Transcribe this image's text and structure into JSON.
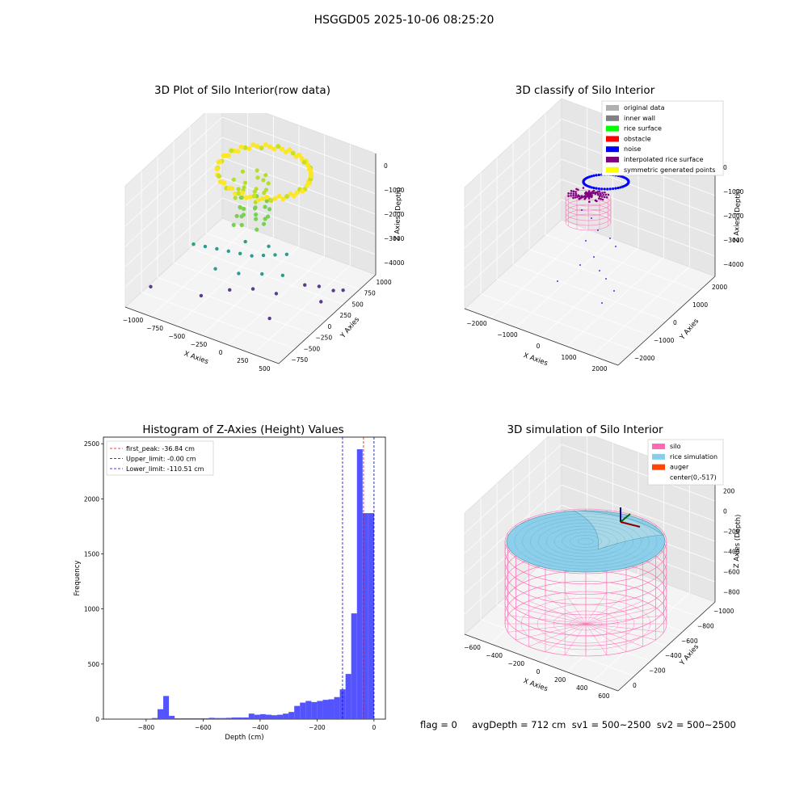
{
  "figure": {
    "suptitle": "HSGGD05 2025-10-06 08:25:20",
    "status_text": "flag = 0     avgDepth = 712 cm  sv1 = 500~2500  sv2 = 500~2500"
  },
  "colors": {
    "noise": "#0000ff",
    "rice_surface": "#00ff00",
    "obstacle": "#ff0000",
    "interpolated": "#800080",
    "symmetric": "#ffff00",
    "original": "#b0b0b0",
    "inner_wall": "#808080",
    "silo": "#ff69b4",
    "rice_sim": "#87ceeb",
    "auger": "#ff4500",
    "hist_bar": "#4b4bff"
  },
  "chart_data": [
    {
      "type": "scatter",
      "title": "3D Plot of Silo Interior(row data)",
      "xlabel": "X Axies",
      "ylabel": "Y Axies",
      "zlabel": "Z Axies (Depth)",
      "x_ticks": [
        "−1000",
        "−750",
        "−500",
        "−250",
        "0",
        "250",
        "500"
      ],
      "y_ticks": [
        "−750",
        "−500",
        "−250",
        "0",
        "250",
        "500",
        "750",
        "1000"
      ],
      "z_ticks": [
        "0",
        "−1000",
        "−2000",
        "−3000",
        "−4000"
      ],
      "xlim": [
        -1150,
        550
      ],
      "ylim": [
        -800,
        1050
      ],
      "zlim": [
        -4300,
        0
      ],
      "ring": {
        "center": [
          -250,
          300
        ],
        "radius": 450,
        "z": -400
      },
      "mid_points": [
        [
          -800,
          -100,
          -2850
        ],
        [
          -700,
          -50,
          -2900
        ],
        [
          -600,
          0,
          -2950
        ],
        [
          -500,
          50,
          -3000
        ],
        [
          -400,
          100,
          -3050
        ],
        [
          -300,
          150,
          -3100
        ],
        [
          -200,
          200,
          -3050
        ],
        [
          -100,
          250,
          -3000
        ],
        [
          0,
          300,
          -2950
        ],
        [
          -500,
          -200,
          -3200
        ],
        [
          -300,
          -100,
          -3300
        ],
        [
          -100,
          0,
          -3250
        ],
        [
          100,
          50,
          -3150
        ],
        [
          -400,
          200,
          -2800
        ],
        [
          -200,
          300,
          -2900
        ]
      ],
      "deep_points": [
        [
          -1100,
          -400,
          -4200
        ],
        [
          -600,
          -300,
          -4100
        ],
        [
          -400,
          -100,
          -4000
        ],
        [
          -200,
          0,
          -3900
        ],
        [
          0,
          100,
          -4000
        ],
        [
          200,
          300,
          -3800
        ],
        [
          300,
          400,
          -3900
        ],
        [
          400,
          500,
          -4100
        ],
        [
          450,
          600,
          -4200
        ],
        [
          350,
          350,
          -4300
        ],
        [
          100,
          -200,
          -4250
        ]
      ]
    },
    {
      "type": "scatter",
      "title": "3D classify of Silo Interior",
      "xlabel": "X Axies",
      "ylabel": "Y Axies",
      "zlabel": "Z Axies (Depth)",
      "x_ticks": [
        "−2000",
        "−1000",
        "0",
        "1000",
        "2000"
      ],
      "y_ticks": [
        "−2000",
        "−1000",
        "0",
        "1000",
        "2000"
      ],
      "z_ticks": [
        "0",
        "−1000",
        "−2000",
        "−3000",
        "−4000"
      ],
      "xlim": [
        -2300,
        2300
      ],
      "ylim": [
        -2300,
        2300
      ],
      "zlim": [
        -4300,
        0
      ],
      "legend": [
        "original data",
        "inner wall",
        "rice surface",
        "obstacle",
        "noise",
        "interpolated rice surface",
        "symmetric generated points"
      ],
      "legend_colors": [
        "#b0b0b0",
        "#808080",
        "#00ff00",
        "#ff0000",
        "#0000ff",
        "#800080",
        "#ffff00"
      ]
    },
    {
      "type": "bar",
      "title": "Histogram of Z-Axies (Height) Values",
      "xlabel": "Depth (cm)",
      "ylabel": "Frequency",
      "xlim": [
        -950,
        40
      ],
      "ylim": [
        0,
        2560
      ],
      "x_ticks": [
        -800,
        -600,
        -400,
        -200,
        0
      ],
      "x_tick_labels": [
        "−800",
        "−600",
        "−400",
        "−200",
        "0"
      ],
      "y_ticks": [
        0,
        500,
        1000,
        1500,
        2000,
        2500
      ],
      "bin_edges": [
        -780,
        -760,
        -740,
        -720,
        -700,
        -680,
        -660,
        -640,
        -620,
        -600,
        -580,
        -560,
        -540,
        -520,
        -500,
        -480,
        -460,
        -440,
        -420,
        -400,
        -380,
        -360,
        -340,
        -320,
        -300,
        -280,
        -260,
        -240,
        -220,
        -200,
        -180,
        -160,
        -140,
        -120,
        -100,
        -80,
        -60,
        -40,
        -20,
        0
      ],
      "counts": [
        10,
        90,
        210,
        30,
        8,
        8,
        8,
        8,
        8,
        8,
        12,
        10,
        10,
        12,
        15,
        15,
        15,
        50,
        40,
        45,
        40,
        35,
        40,
        50,
        65,
        120,
        150,
        165,
        155,
        165,
        175,
        180,
        200,
        270,
        410,
        960,
        2450,
        1870,
        1870
      ],
      "lines": [
        {
          "label": "first_peak: -36.84 cm",
          "x": -36.84,
          "color": "#ff0000"
        },
        {
          "label": "Upper_limit: -0.00 cm",
          "x": 0.0,
          "color": "#00008b"
        },
        {
          "label": "Lower_limit: -110.51 cm",
          "x": -110.51,
          "color": "#0000ff"
        }
      ]
    },
    {
      "type": "surface",
      "title": "3D simulation of Silo Interior",
      "xlabel": "X Axies",
      "ylabel": "Y Axies",
      "zlabel": "Z Axies (Depth)",
      "x_ticks": [
        "−600",
        "−400",
        "−200",
        "0",
        "200",
        "400",
        "600"
      ],
      "y_ticks": [
        "0",
        "−200",
        "−400",
        "−600",
        "−800",
        "−1000"
      ],
      "z_ticks": [
        "200",
        "0",
        "−200",
        "−400",
        "−600",
        "−800"
      ],
      "xlim": [
        -650,
        650
      ],
      "ylim": [
        -1150,
        130
      ],
      "zlim": [
        -950,
        280
      ],
      "cylinder": {
        "center": [
          0,
          -517
        ],
        "radius": 600,
        "top": 0,
        "bottom": -900
      },
      "legend": [
        "silo",
        "rice simulation",
        "auger",
        "center(0,-517)"
      ],
      "legend_colors": [
        "#ff69b4",
        "#87ceeb",
        "#ff4500",
        "none"
      ]
    }
  ]
}
